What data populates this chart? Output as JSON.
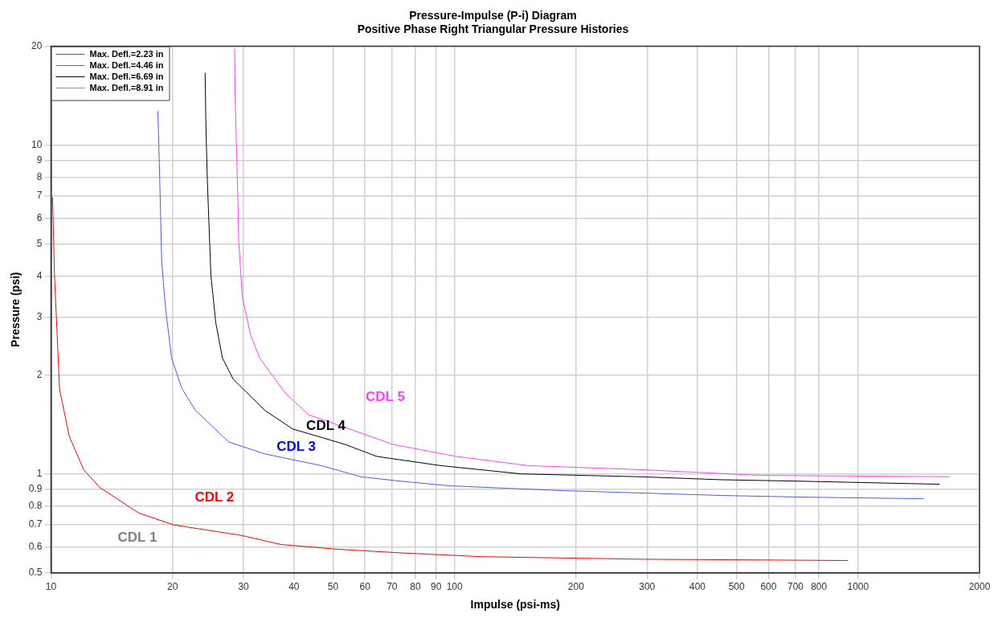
{
  "chart_data": {
    "type": "line",
    "title": "Pressure-Impulse (P-i) Diagram",
    "subtitle": "Positive Phase Right Triangular Pressure Histories",
    "xlabel": "Impulse (psi-ms)",
    "ylabel": "Pressure (psi)",
    "log": "xy",
    "grid": true,
    "legend": "top left",
    "marker": "none",
    "line_style": "solid",
    "xlim": [
      10,
      2000
    ],
    "xticks": [
      10,
      20,
      30,
      40,
      50,
      60,
      70,
      80,
      90,
      100,
      200,
      300,
      400,
      500,
      600,
      700,
      800,
      1000,
      2000
    ],
    "ylim": [
      0.5,
      20
    ],
    "yticks": [
      0.5,
      0.6,
      0.7,
      0.8,
      0.9,
      1,
      2,
      3,
      4,
      5,
      6,
      7,
      8,
      9,
      10,
      20
    ],
    "series": [
      {
        "name": "Max. Defl.=2.23 in",
        "color": "#ff0000",
        "x": [
          10.09,
          10.2,
          10.5,
          11.1,
          12.05,
          13.2,
          16.5,
          20.1,
          29.6,
          37.1,
          51.1,
          73.6,
          116,
          289,
          944
        ],
        "values": [
          6.95,
          4.03,
          1.81,
          1.3,
          1.03,
          0.91,
          0.76,
          0.7,
          0.65,
          0.61,
          0.59,
          0.575,
          0.56,
          0.55,
          0.545
        ]
      },
      {
        "name": "Max. Defl.=4.46 in",
        "color": "#4a5cf0",
        "x": [
          18.4,
          18.6,
          18.8,
          19.2,
          19.9,
          21.1,
          22.8,
          27.6,
          33.9,
          46.7,
          58.6,
          73.6,
          96.9,
          182,
          455,
          719,
          1455
        ],
        "values": [
          12.7,
          7.84,
          4.46,
          3.24,
          2.25,
          1.82,
          1.56,
          1.25,
          1.15,
          1.06,
          0.98,
          0.95,
          0.92,
          0.89,
          0.86,
          0.85,
          0.84
        ]
      },
      {
        "name": "Max. Defl.=6.69 in",
        "color": "#000000",
        "x": [
          24.1,
          24.2,
          24.4,
          24.9,
          25.6,
          26.6,
          28.3,
          33.9,
          39.7,
          53.5,
          64.2,
          92.2,
          146,
          289,
          455,
          719,
          1593
        ],
        "values": [
          16.6,
          11.56,
          7.84,
          4.03,
          2.89,
          2.25,
          1.94,
          1.56,
          1.37,
          1.23,
          1.13,
          1.06,
          1.0,
          0.98,
          0.96,
          0.95,
          0.93
        ]
      },
      {
        "name": "Max. Defl.=8.91 in",
        "color": "#ff40ff",
        "x": [
          28.5,
          28.6,
          29.0,
          29.2,
          29.8,
          31.2,
          32.9,
          38.1,
          43.6,
          55.9,
          70.2,
          101,
          152,
          289,
          570,
          1690
        ],
        "values": [
          19.7,
          14.0,
          7.4,
          5.04,
          3.45,
          2.66,
          2.25,
          1.76,
          1.51,
          1.36,
          1.23,
          1.13,
          1.06,
          1.03,
          0.99,
          0.98
        ]
      }
    ],
    "annotations": [
      "CDL 1",
      "CDL 2",
      "CDL 3",
      "CDL 4",
      "CDL 5"
    ]
  }
}
